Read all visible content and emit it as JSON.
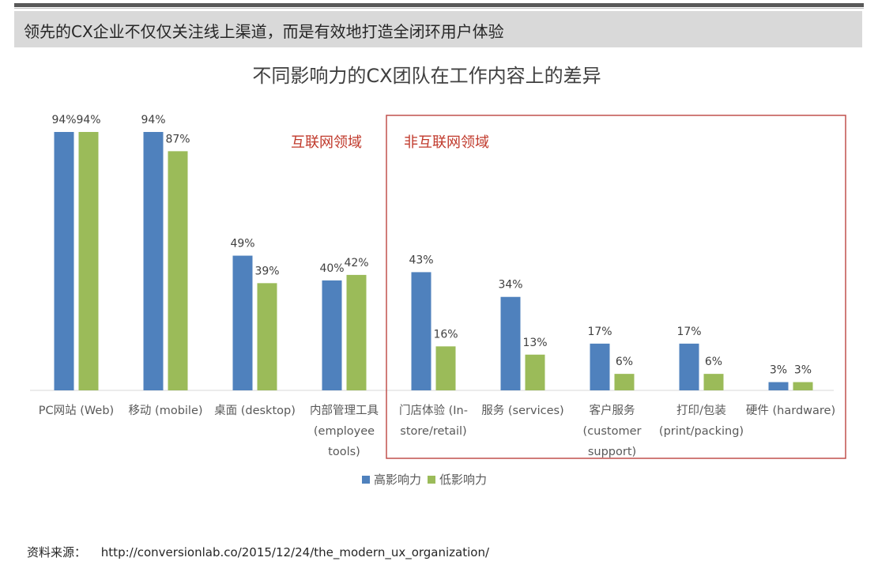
{
  "headline": "领先的CX企业不仅仅关注线上渠道，而是有效地打造全闭环用户体验",
  "source_label": "资料来源：",
  "source_url": "http://conversionlab.co/2015/12/24/the_modern_ux_organization/",
  "colors": {
    "high_impact": "#4f81bd",
    "low_impact": "#9bbb59",
    "annotation": "#c0392b",
    "box_border": "#c0504d"
  },
  "chart_data": {
    "type": "bar",
    "title": "不同影响力的CX团队在工作内容上的差异",
    "categories": [
      [
        "PC网站 (Web)"
      ],
      [
        "移动 (mobile)"
      ],
      [
        "桌面 (desktop)"
      ],
      [
        "内部管理工具",
        "(employee",
        "tools)"
      ],
      [
        "门店体验 (In-",
        "store/retail)"
      ],
      [
        "服务 (services)"
      ],
      [
        "客户服务",
        "(customer",
        "support)"
      ],
      [
        "打印/包装",
        "(print/packing)"
      ],
      [
        "硬件 (hardware)"
      ]
    ],
    "series": [
      {
        "name": "高影响力",
        "values": [
          94,
          94,
          49,
          40,
          43,
          34,
          17,
          17,
          3
        ]
      },
      {
        "name": "低影响力",
        "values": [
          94,
          87,
          39,
          42,
          16,
          13,
          6,
          6,
          3
        ]
      }
    ],
    "value_suffix": "%",
    "ylim": [
      0,
      100
    ],
    "grid": false,
    "legend": "bottom",
    "annotations": [
      {
        "text": "互联网领域"
      },
      {
        "text": "非互联网领域"
      }
    ]
  }
}
